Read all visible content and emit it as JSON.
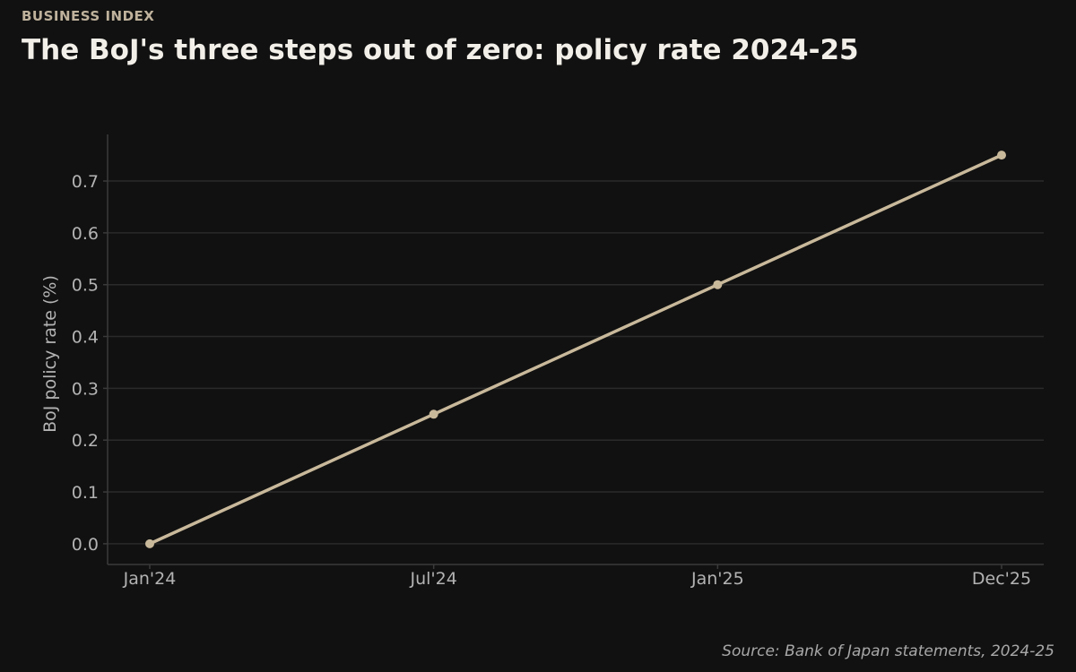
{
  "header": {
    "kicker": "BUSINESS INDEX",
    "title": "The BoJ's three steps out of zero: policy rate 2024-25"
  },
  "footer": {
    "source": "Source: Bank of Japan statements, 2024-25"
  },
  "colors": {
    "background": "#111111",
    "line": "#c9b99b",
    "grid": "#2a2a2a",
    "axis": "#3a3a3a",
    "tick_text": "#b3b3b3"
  },
  "chart_data": {
    "type": "line",
    "title": "The BoJ's three steps out of zero: policy rate 2024-25",
    "xlabel": "",
    "ylabel": "BoJ policy rate (%)",
    "categories": [
      "Jan'24",
      "Jul'24",
      "Jan'25",
      "Dec'25"
    ],
    "series": [
      {
        "values": [
          0.0,
          0.25,
          0.5,
          0.75
        ]
      }
    ],
    "ylim": [
      -0.04,
      0.79
    ],
    "yticks": [
      0.0,
      0.1,
      0.2,
      0.3,
      0.4,
      0.5,
      0.6,
      0.7
    ],
    "ytick_labels": [
      "0.0",
      "0.1",
      "0.2",
      "0.3",
      "0.4",
      "0.5",
      "0.6",
      "0.7"
    ],
    "grid": true,
    "legend": "none"
  }
}
